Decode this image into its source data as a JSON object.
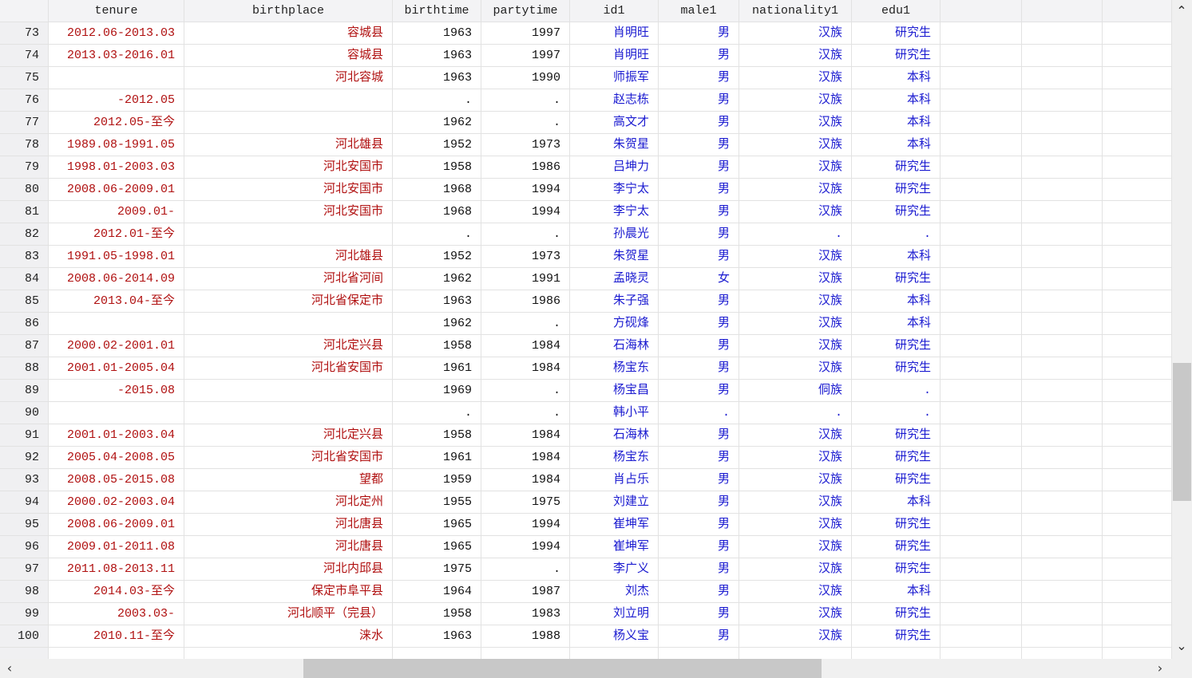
{
  "columns": [
    "tenure",
    "birthplace",
    "birthtime",
    "partytime",
    "id1",
    "male1",
    "nationality1",
    "edu1",
    "",
    "",
    ""
  ],
  "rows": [
    {
      "n": "73",
      "tenure": "2012.06-2013.03",
      "birthplace": "容城县",
      "birthtime": "1963",
      "partytime": "1997",
      "id1": "肖明旺",
      "male1": "男",
      "nationality1": "汉族",
      "edu1": "研究生"
    },
    {
      "n": "74",
      "tenure": "2013.03-2016.01",
      "birthplace": "容城县",
      "birthtime": "1963",
      "partytime": "1997",
      "id1": "肖明旺",
      "male1": "男",
      "nationality1": "汉族",
      "edu1": "研究生"
    },
    {
      "n": "75",
      "tenure": "",
      "birthplace": "河北容城",
      "birthtime": "1963",
      "partytime": "1990",
      "id1": "师振军",
      "male1": "男",
      "nationality1": "汉族",
      "edu1": "本科"
    },
    {
      "n": "76",
      "tenure": "-2012.05",
      "birthplace": "",
      "birthtime": ".",
      "partytime": ".",
      "id1": "赵志栋",
      "male1": "男",
      "nationality1": "汉族",
      "edu1": "本科"
    },
    {
      "n": "77",
      "tenure": "2012.05-至今",
      "birthplace": "",
      "birthtime": "1962",
      "partytime": ".",
      "id1": "高文才",
      "male1": "男",
      "nationality1": "汉族",
      "edu1": "本科"
    },
    {
      "n": "78",
      "tenure": "1989.08-1991.05",
      "birthplace": "河北雄县",
      "birthtime": "1952",
      "partytime": "1973",
      "id1": "朱贺星",
      "male1": "男",
      "nationality1": "汉族",
      "edu1": "本科"
    },
    {
      "n": "79",
      "tenure": "1998.01-2003.03",
      "birthplace": "河北安国市",
      "birthtime": "1958",
      "partytime": "1986",
      "id1": "吕坤力",
      "male1": "男",
      "nationality1": "汉族",
      "edu1": "研究生"
    },
    {
      "n": "80",
      "tenure": "2008.06-2009.01",
      "birthplace": "河北安国市",
      "birthtime": "1968",
      "partytime": "1994",
      "id1": "李宁太",
      "male1": "男",
      "nationality1": "汉族",
      "edu1": "研究生"
    },
    {
      "n": "81",
      "tenure": "2009.01-",
      "birthplace": "河北安国市",
      "birthtime": "1968",
      "partytime": "1994",
      "id1": "李宁太",
      "male1": "男",
      "nationality1": "汉族",
      "edu1": "研究生"
    },
    {
      "n": "82",
      "tenure": "2012.01-至今",
      "birthplace": "",
      "birthtime": ".",
      "partytime": ".",
      "id1": "孙晨光",
      "male1": "男",
      "nationality1": ".",
      "edu1": "."
    },
    {
      "n": "83",
      "tenure": "1991.05-1998.01",
      "birthplace": "河北雄县",
      "birthtime": "1952",
      "partytime": "1973",
      "id1": "朱贺星",
      "male1": "男",
      "nationality1": "汉族",
      "edu1": "本科"
    },
    {
      "n": "84",
      "tenure": "2008.06-2014.09",
      "birthplace": "河北省河间",
      "birthtime": "1962",
      "partytime": "1991",
      "id1": "孟晓灵",
      "male1": "女",
      "nationality1": "汉族",
      "edu1": "研究生"
    },
    {
      "n": "85",
      "tenure": "2013.04-至今",
      "birthplace": "河北省保定市",
      "birthtime": "1963",
      "partytime": "1986",
      "id1": "朱子强",
      "male1": "男",
      "nationality1": "汉族",
      "edu1": "本科"
    },
    {
      "n": "86",
      "tenure": "",
      "birthplace": "",
      "birthtime": "1962",
      "partytime": ".",
      "id1": "方砚烽",
      "male1": "男",
      "nationality1": "汉族",
      "edu1": "本科"
    },
    {
      "n": "87",
      "tenure": "2000.02-2001.01",
      "birthplace": "河北定兴县",
      "birthtime": "1958",
      "partytime": "1984",
      "id1": "石海林",
      "male1": "男",
      "nationality1": "汉族",
      "edu1": "研究生"
    },
    {
      "n": "88",
      "tenure": "2001.01-2005.04",
      "birthplace": "河北省安国市",
      "birthtime": "1961",
      "partytime": "1984",
      "id1": "杨宝东",
      "male1": "男",
      "nationality1": "汉族",
      "edu1": "研究生"
    },
    {
      "n": "89",
      "tenure": "-2015.08",
      "birthplace": "",
      "birthtime": "1969",
      "partytime": ".",
      "id1": "杨宝昌",
      "male1": "男",
      "nationality1": "侗族",
      "edu1": "."
    },
    {
      "n": "90",
      "tenure": "",
      "birthplace": "",
      "birthtime": ".",
      "partytime": ".",
      "id1": "韩小平",
      "male1": ".",
      "nationality1": ".",
      "edu1": "."
    },
    {
      "n": "91",
      "tenure": "2001.01-2003.04",
      "birthplace": "河北定兴县",
      "birthtime": "1958",
      "partytime": "1984",
      "id1": "石海林",
      "male1": "男",
      "nationality1": "汉族",
      "edu1": "研究生"
    },
    {
      "n": "92",
      "tenure": "2005.04-2008.05",
      "birthplace": "河北省安国市",
      "birthtime": "1961",
      "partytime": "1984",
      "id1": "杨宝东",
      "male1": "男",
      "nationality1": "汉族",
      "edu1": "研究生"
    },
    {
      "n": "93",
      "tenure": "2008.05-2015.08",
      "birthplace": "望都",
      "birthtime": "1959",
      "partytime": "1984",
      "id1": "肖占乐",
      "male1": "男",
      "nationality1": "汉族",
      "edu1": "研究生"
    },
    {
      "n": "94",
      "tenure": "2000.02-2003.04",
      "birthplace": "河北定州",
      "birthtime": "1955",
      "partytime": "1975",
      "id1": "刘建立",
      "male1": "男",
      "nationality1": "汉族",
      "edu1": "本科"
    },
    {
      "n": "95",
      "tenure": "2008.06-2009.01",
      "birthplace": "河北唐县",
      "birthtime": "1965",
      "partytime": "1994",
      "id1": "崔坤军",
      "male1": "男",
      "nationality1": "汉族",
      "edu1": "研究生"
    },
    {
      "n": "96",
      "tenure": "2009.01-2011.08",
      "birthplace": "河北唐县",
      "birthtime": "1965",
      "partytime": "1994",
      "id1": "崔坤军",
      "male1": "男",
      "nationality1": "汉族",
      "edu1": "研究生"
    },
    {
      "n": "97",
      "tenure": "2011.08-2013.11",
      "birthplace": "河北内邱县",
      "birthtime": "1975",
      "partytime": ".",
      "id1": "李广义",
      "male1": "男",
      "nationality1": "汉族",
      "edu1": "研究生"
    },
    {
      "n": "98",
      "tenure": "2014.03-至今",
      "birthplace": "保定市阜平县",
      "birthtime": "1964",
      "partytime": "1987",
      "id1": "刘杰",
      "male1": "男",
      "nationality1": "汉族",
      "edu1": "本科"
    },
    {
      "n": "99",
      "tenure": "2003.03-",
      "birthplace": "河北顺平（完县）",
      "birthtime": "1958",
      "partytime": "1983",
      "id1": "刘立明",
      "male1": "男",
      "nationality1": "汉族",
      "edu1": "研究生"
    },
    {
      "n": "100",
      "tenure": "2010.11-至今",
      "birthplace": "涞水",
      "birthtime": "1963",
      "partytime": "1988",
      "id1": "杨义宝",
      "male1": "男",
      "nationality1": "汉族",
      "edu1": "研究生"
    }
  ],
  "colors": {
    "string_text": "#b01010",
    "label_text": "#1a1ad0",
    "numeric_text": "#111111"
  },
  "scrollbars": {
    "vertical_position_fraction": 0.55,
    "horizontal_position_fraction": 0.34
  },
  "icons": {
    "scroll_up": "chevron-up-icon",
    "scroll_down": "chevron-down-icon",
    "scroll_left": "chevron-left-icon",
    "scroll_right": "chevron-right-icon"
  }
}
